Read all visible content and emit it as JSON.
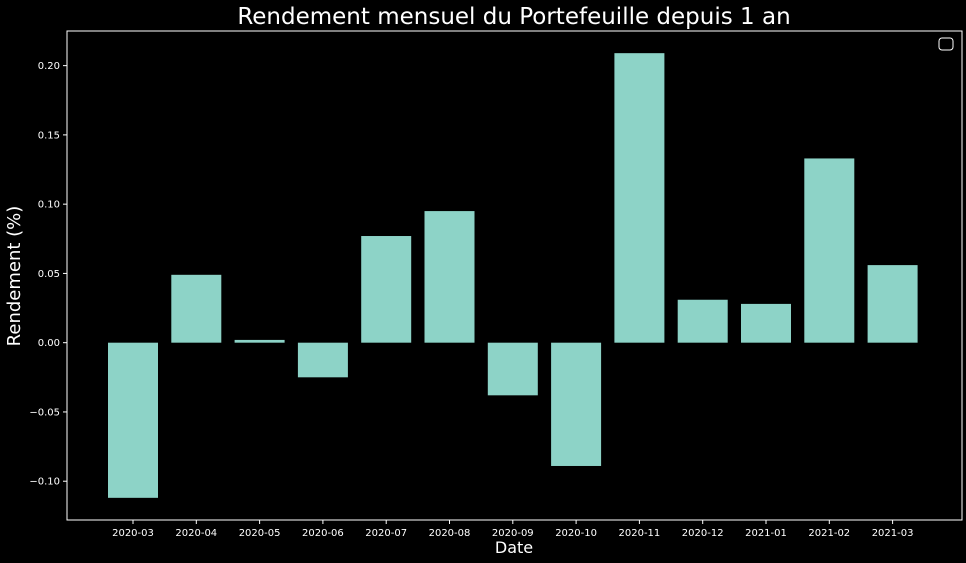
{
  "chart_data": {
    "type": "bar",
    "title": "Rendement mensuel du Portefeuille depuis 1 an",
    "xlabel": "Date",
    "ylabel": "Rendement (%)",
    "categories": [
      "2020-03",
      "2020-04",
      "2020-05",
      "2020-06",
      "2020-07",
      "2020-08",
      "2020-09",
      "2020-10",
      "2020-11",
      "2020-12",
      "2021-01",
      "2021-02",
      "2021-03"
    ],
    "values": [
      -0.112,
      0.049,
      0.002,
      -0.025,
      0.077,
      0.095,
      -0.038,
      -0.089,
      0.209,
      0.031,
      0.028,
      0.133,
      0.056
    ],
    "ylim": [
      -0.128,
      0.225
    ],
    "yticks": [
      -0.1,
      -0.05,
      0.0,
      0.05,
      0.1,
      0.15,
      0.2
    ],
    "ytick_labels": [
      "−0.10",
      "−0.05",
      "0.00",
      "0.05",
      "0.10",
      "0.15",
      "0.20"
    ],
    "legend_position": "top-right",
    "grid": false,
    "colors": {
      "bar": "#8dd3c7",
      "background": "#000000",
      "axis": "#ffffff",
      "text": "#ffffff"
    }
  }
}
